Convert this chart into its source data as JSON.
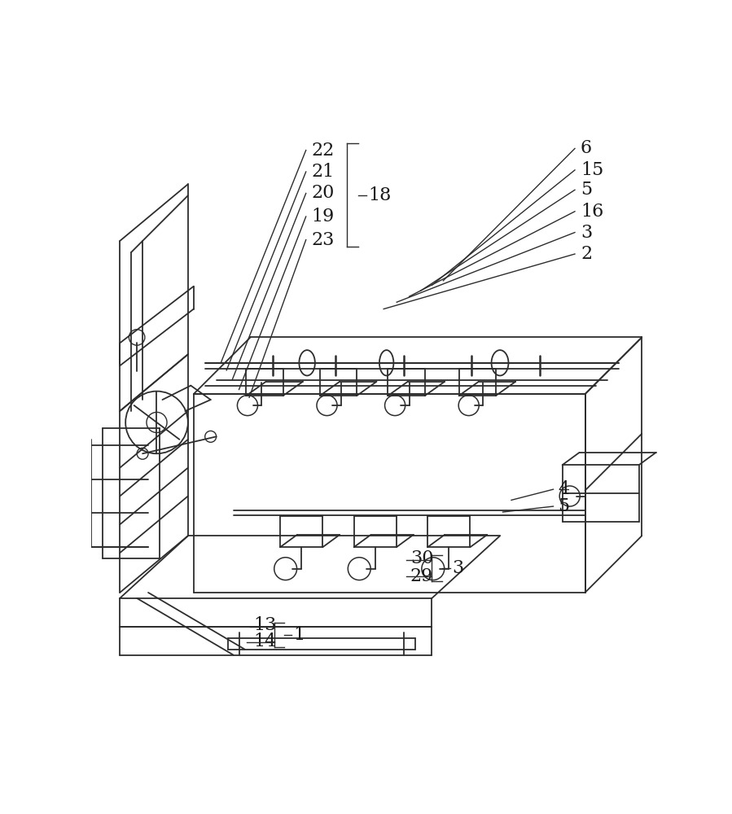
{
  "background_color": "#ffffff",
  "line_color": "#2d2d2d",
  "label_color": "#1a1a1a",
  "label_fontsize": 16,
  "figsize": [
    8.99,
    10.0
  ],
  "dpi": 100
}
